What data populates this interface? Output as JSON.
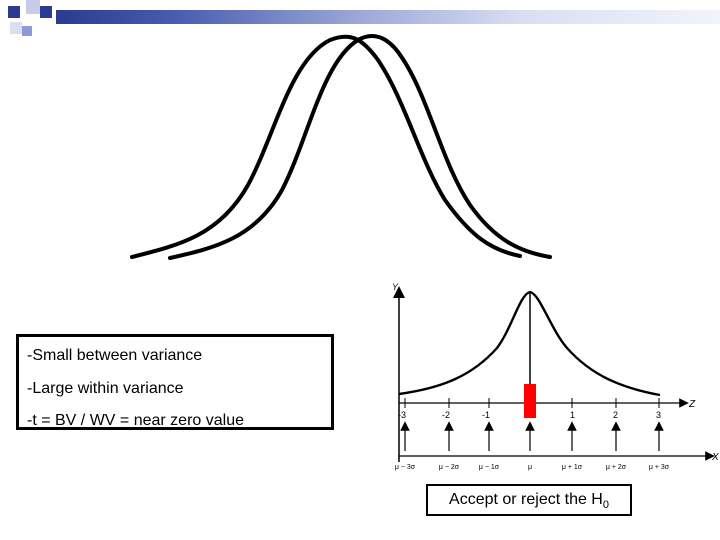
{
  "colors": {
    "accent_dark": "#2b3b8f",
    "accent_light": "#8d9ad3",
    "marker": "#ff0000",
    "stroke": "#000000"
  },
  "info_box": {
    "lines": [
      "-Small between variance",
      "-Large within variance",
      "-t = BV / WV = near zero value"
    ]
  },
  "normal_diagram": {
    "y_label": "Y",
    "z_label": "Z",
    "x_label": "X",
    "z_ticks": [
      "-3",
      "-2",
      "-1",
      "1",
      "2",
      "3"
    ],
    "x_ticks": [
      "μ − 3σ",
      "μ − 2σ",
      "μ − 1σ",
      "μ",
      "μ + 1σ",
      "μ + 2σ",
      "μ + 3σ"
    ]
  },
  "decision": {
    "text": "Accept or reject the H",
    "subscript": "0"
  }
}
